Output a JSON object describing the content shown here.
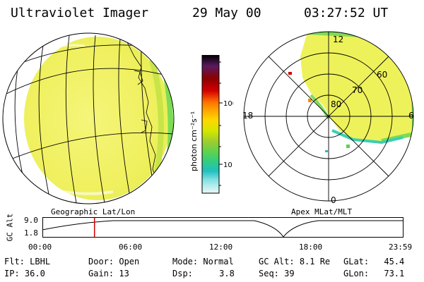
{
  "header": {
    "instrument": "Ultraviolet Imager",
    "date": "29 May 00",
    "time": "03:27:52 UT"
  },
  "colorbar": {
    "unit_label": "photon cm⁻²s⁻¹",
    "ticks": [
      "100",
      "10"
    ],
    "colors": [
      "#000000",
      "#5a1a5e",
      "#8b0000",
      "#d40000",
      "#ff7000",
      "#ffa500",
      "#ffd700",
      "#d4e600",
      "#9acd32",
      "#5fd24f",
      "#32cd80",
      "#20c0c0",
      "#7fdfe0",
      "#b8eeee",
      "#e8f6f6"
    ]
  },
  "polar_plot": {
    "lat_labels": [
      "80",
      "70",
      "60"
    ],
    "mlt_labels": [
      "12",
      "18",
      "6",
      "0"
    ]
  },
  "map_labels": {
    "left": "Geographic Lat/Lon",
    "right": "Apex MLat/MLT"
  },
  "altitude_strip": {
    "axis_label": "GC Alt",
    "y_ticks": [
      "9.0",
      "1.8"
    ],
    "time_ticks": [
      "00:00",
      "06:00",
      "12:00",
      "18:00",
      "23:59"
    ],
    "current_time_hours": 3.46,
    "cursor_color": "#d00000"
  },
  "info_rows": [
    [
      {
        "label": "Flt:",
        "value": "LBHL"
      },
      {
        "label": "Door:",
        "value": "Open"
      },
      {
        "label": "Mode:",
        "value": "Normal"
      },
      {
        "label": "GC Alt:",
        "value": "8.1 Re"
      },
      {
        "label": "GLat:",
        "value": "45.4"
      }
    ],
    [
      {
        "label": "IP:",
        "value": "36.0"
      },
      {
        "label": "Gain:",
        "value": "13"
      },
      {
        "label": "Dsp:",
        "value": "3.8"
      },
      {
        "label": "Seq:",
        "value": "39"
      },
      {
        "label": "GLon:",
        "value": "73.1"
      }
    ]
  ]
}
